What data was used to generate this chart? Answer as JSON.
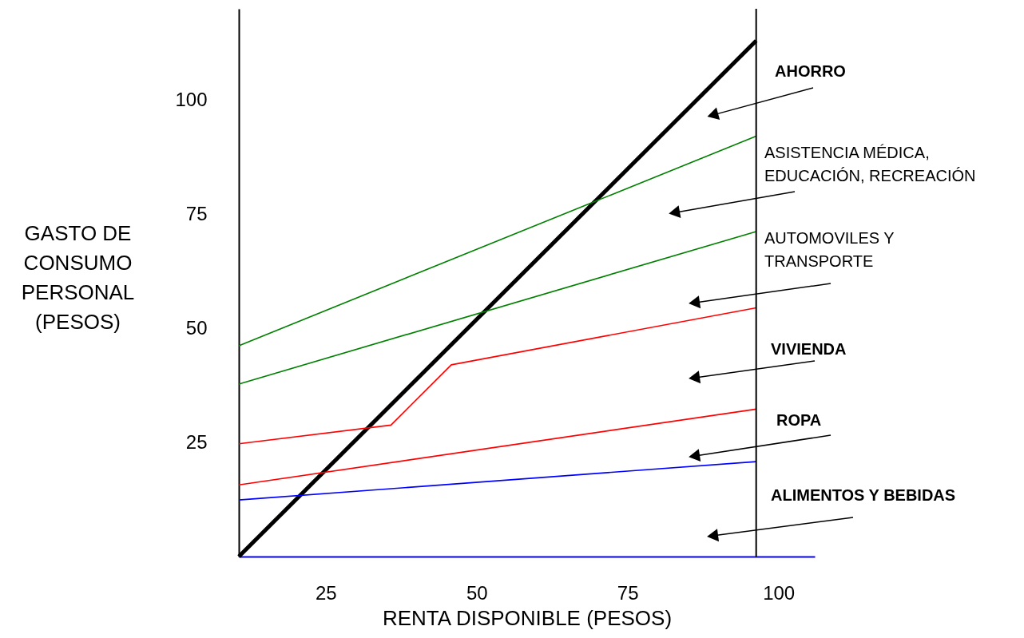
{
  "chart_data": {
    "type": "line",
    "xlabel": "RENTA DISPONIBLE (PESOS)",
    "ylabel": "GASTO DE\nCONSUMO\nPERSONAL\n(PESOS)",
    "xlim": [
      10.6,
      106
    ],
    "ylim": [
      0,
      120
    ],
    "xticks": [
      25,
      50,
      75,
      100
    ],
    "yticks": [
      25,
      50,
      75,
      100
    ],
    "grid": false,
    "marker": "none",
    "line_style": "solid",
    "series": [
      {
        "color": "#000000",
        "x": [
          10.6,
          96.3
        ],
        "values": [
          0,
          113
        ]
      },
      {
        "color": "#008000",
        "x": [
          10.6,
          96.3
        ],
        "values": [
          46.2,
          92.1
        ]
      },
      {
        "color": "#008000",
        "x": [
          10.6,
          96.3
        ],
        "values": [
          37.8,
          71.2
        ]
      },
      {
        "color": "#ff0000",
        "x": [
          10.6,
          35.8,
          45.8,
          96.3
        ],
        "values": [
          24.7,
          28.8,
          42.0,
          54.5
        ]
      },
      {
        "color": "#ff0000",
        "x": [
          10.6,
          96.3
        ],
        "values": [
          15.7,
          32.3
        ]
      },
      {
        "color": "#0000ff",
        "x": [
          10.6,
          96.3
        ],
        "values": [
          12.4,
          20.8
        ]
      }
    ],
    "ref_lines": [
      {
        "axis": "x",
        "value": 96.3,
        "color": "#000000"
      }
    ],
    "annotations": [
      "AHORRO",
      "ASISTENCIA  MÉDICA,\nEDUCACIÓN, RECREACIÓN",
      "AUTOMOVILES Y\nTRANSPORTE",
      "VIVIENDA",
      "ROPA",
      "ALIMENTOS Y BEBIDAS"
    ]
  }
}
